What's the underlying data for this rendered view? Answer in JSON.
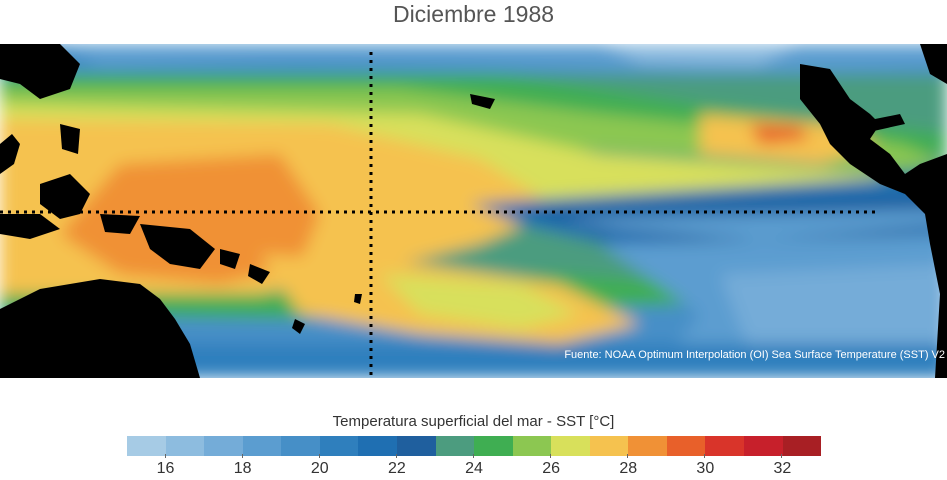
{
  "title": "Diciembre 1988",
  "source": "Fuente: NOAA Optimum Interpolation (OI) Sea Surface Temperature (SST) V2",
  "colorbar": {
    "label": "Temperatura superficial del mar - SST  [°C]",
    "ticks": [
      "16",
      "18",
      "20",
      "22",
      "24",
      "26",
      "28",
      "30",
      "32"
    ],
    "tick_values": [
      16,
      18,
      20,
      22,
      24,
      26,
      28,
      30,
      32
    ],
    "min": 15,
    "max": 33,
    "step": 1,
    "colors": [
      "#a6cbe5",
      "#8dbcdf",
      "#74acd8",
      "#5b9dd0",
      "#468fc7",
      "#2f7fbd",
      "#1f6fb2",
      "#1f5f9e",
      "#4c9c7f",
      "#3fae52",
      "#8cc751",
      "#d8e05b",
      "#f5c24f",
      "#f09136",
      "#e8602a",
      "#d9342a",
      "#c7202b",
      "#a81f24"
    ]
  },
  "map": {
    "region": "Pacífico tropical",
    "land_color": "#000000",
    "reference_lines": [
      "equator",
      "dateline"
    ]
  }
}
